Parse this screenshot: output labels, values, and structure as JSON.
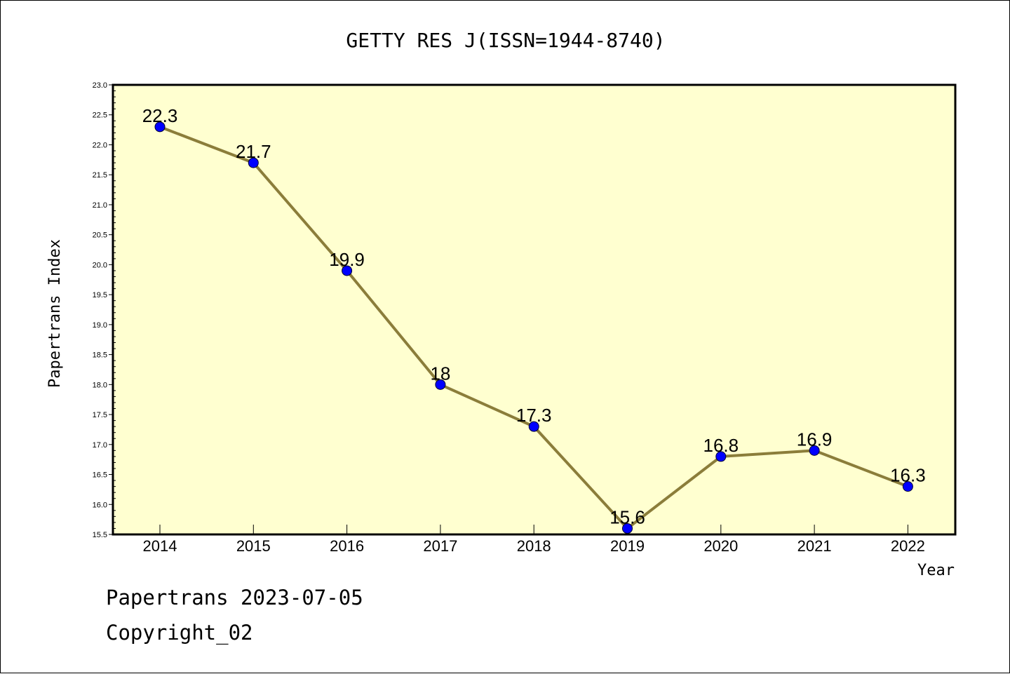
{
  "chart_data": {
    "type": "line",
    "title": "GETTY RES J(ISSN=1944-8740)",
    "xlabel": "Year",
    "ylabel": "Papertrans Index",
    "categories": [
      "2014",
      "2015",
      "2016",
      "2017",
      "2018",
      "2019",
      "2020",
      "2021",
      "2022"
    ],
    "values": [
      22.3,
      21.7,
      19.9,
      18,
      17.3,
      15.6,
      16.8,
      16.9,
      16.3
    ],
    "data_labels": [
      "22.3",
      "21.7",
      "19.9",
      "18",
      "17.3",
      "15.6",
      "16.8",
      "16.9",
      "16.3"
    ],
    "ylim": [
      15.5,
      23.0
    ],
    "yticks": [
      "15.5",
      "16.0",
      "16.5",
      "17.0",
      "17.5",
      "18.0",
      "18.5",
      "19.0",
      "19.5",
      "20.0",
      "20.5",
      "21.0",
      "21.5",
      "22.0",
      "22.5",
      "23.0"
    ],
    "grid": false,
    "legend": "none",
    "colors": {
      "plot_background": "#ffffd0",
      "line": "#8b7d3a",
      "marker": "#0000ff"
    }
  },
  "footer": {
    "line1": "Papertrans 2023-07-05",
    "line2": "Copyright_02"
  }
}
